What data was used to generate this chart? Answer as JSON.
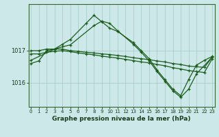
{
  "bg_color": "#cce8e8",
  "grid_color": "#aacccc",
  "line_color": "#1a5c1a",
  "title": "Graphe pression niveau de la mer (hPa)",
  "x_ticks": [
    0,
    1,
    2,
    3,
    4,
    5,
    6,
    7,
    8,
    9,
    10,
    11,
    12,
    13,
    14,
    15,
    16,
    17,
    18,
    19,
    20,
    21,
    22,
    23
  ],
  "ylim": [
    1015.25,
    1018.45
  ],
  "xlim": [
    -0.3,
    23.3
  ],
  "yticks": [
    1016,
    1017
  ],
  "series": [
    {
      "x": [
        0,
        1,
        2,
        3,
        4,
        5,
        6,
        7,
        8,
        9,
        10,
        11,
        12,
        13,
        14,
        15,
        16,
        17,
        18,
        19,
        20,
        21,
        22,
        23
      ],
      "y": [
        1017.0,
        1017.0,
        1017.05,
        1017.05,
        1017.05,
        1017.0,
        1016.98,
        1016.95,
        1016.93,
        1016.9,
        1016.88,
        1016.85,
        1016.82,
        1016.78,
        1016.75,
        1016.72,
        1016.68,
        1016.65,
        1016.6,
        1016.57,
        1016.52,
        1016.5,
        1016.48,
        1016.8
      ]
    },
    {
      "x": [
        0,
        1,
        2,
        3,
        4,
        5,
        6,
        7,
        8,
        9,
        10,
        11,
        12,
        13,
        14,
        15,
        16,
        17,
        18,
        19,
        20,
        21,
        22,
        23
      ],
      "y": [
        1016.9,
        1016.9,
        1016.95,
        1016.98,
        1017.0,
        1016.97,
        1016.93,
        1016.9,
        1016.87,
        1016.83,
        1016.8,
        1016.77,
        1016.73,
        1016.69,
        1016.65,
        1016.62,
        1016.57,
        1016.53,
        1016.47,
        1016.43,
        1016.38,
        1016.35,
        1016.32,
        1016.75
      ]
    },
    {
      "x": [
        0,
        3,
        4,
        5,
        7,
        8,
        9,
        10,
        11,
        13,
        14,
        15,
        16,
        17,
        18,
        19,
        20,
        21,
        22,
        23
      ],
      "y": [
        1016.7,
        1017.05,
        1017.2,
        1017.35,
        1017.85,
        1018.1,
        1017.9,
        1017.7,
        1017.6,
        1017.25,
        1017.0,
        1016.75,
        1016.4,
        1016.1,
        1015.8,
        1015.6,
        1016.1,
        1016.55,
        1016.7,
        1016.82
      ]
    },
    {
      "x": [
        0,
        1,
        2,
        3,
        4,
        5,
        8,
        9,
        10,
        11,
        13,
        14,
        15,
        16,
        17,
        18,
        19,
        20,
        21,
        23
      ],
      "y": [
        1016.6,
        1016.68,
        1017.0,
        1017.05,
        1017.12,
        1017.18,
        1017.78,
        1017.92,
        1017.85,
        1017.62,
        1017.2,
        1016.95,
        1016.68,
        1016.35,
        1016.05,
        1015.75,
        1015.55,
        1015.8,
        1016.28,
        1016.8
      ]
    }
  ]
}
